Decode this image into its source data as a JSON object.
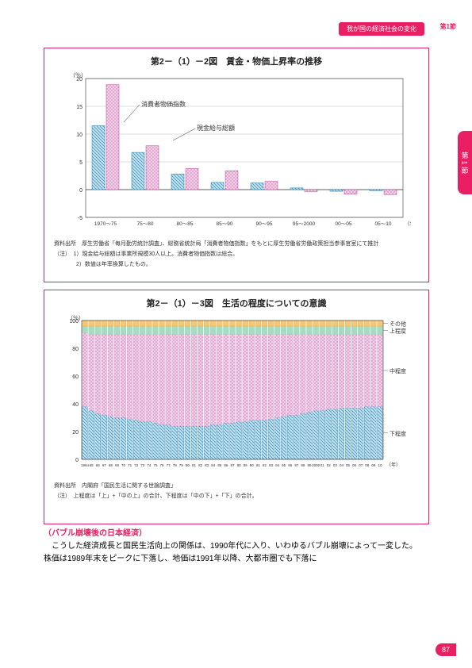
{
  "header": {
    "tag": "我が国の経済社会の変化",
    "sect": "第1節"
  },
  "sideTab": "第 1 節",
  "chart1": {
    "title": "第2－（1）－2図　賃金・物価上昇率の推移",
    "yUnit": "（％）",
    "xUnitSuffix": "（年）",
    "ylim": [
      -5,
      20
    ],
    "yticks": [
      -5,
      0,
      5,
      10,
      15,
      20
    ],
    "categories": [
      "1970～75",
      "75～80",
      "80～85",
      "85～90",
      "90～95",
      "95～2000",
      "00～05",
      "05～10"
    ],
    "series": [
      {
        "name": "消費者物価指数",
        "color": "#c04898",
        "values": [
          11.5,
          6.7,
          2.8,
          1.3,
          1.2,
          0.3,
          -0.3,
          -0.2
        ]
      },
      {
        "name": "現金給与総額",
        "color": "#1a7aa8",
        "values": [
          18.9,
          7.9,
          3.8,
          3.4,
          1.5,
          -0.4,
          -0.8,
          -0.9
        ]
      }
    ],
    "annot1": {
      "text": "消費者物価指数",
      "target": 0
    },
    "annot2": {
      "text": "現金給与総額",
      "target": 1
    },
    "source": "資料出所　厚生労働省「毎月勤労統計調査」、総務省統計局「消費者物価指数」をもとに厚生労働省労働政策担当参事官室にて推計",
    "notes": [
      "（注）　1）現金給与総額は事業所規模30人以上。消費者物価指数は総合。",
      "　　　　2）数値は年率換算したもの。"
    ]
  },
  "chart2": {
    "title": "第2－（1）－3図　生活の程度についての意識",
    "yUnit": "（％）",
    "xUnitSuffix": "（年）",
    "ylim": [
      0,
      100
    ],
    "yticks": [
      0,
      20,
      40,
      60,
      80,
      100
    ],
    "years": [
      1964,
      65,
      66,
      67,
      68,
      69,
      70,
      71,
      72,
      73,
      74,
      75,
      76,
      77,
      78,
      79,
      80,
      81,
      82,
      83,
      84,
      85,
      86,
      87,
      88,
      89,
      90,
      91,
      92,
      93,
      94,
      95,
      96,
      97,
      98,
      99,
      2000,
      "01",
      "02",
      "03",
      "04",
      "05",
      "06",
      "07",
      "08",
      "09",
      10
    ],
    "rightLabels": [
      "その他",
      "上程度",
      "中程度",
      "下程度"
    ],
    "legendColors": {
      "下程度": "#1a7aa8",
      "中程度": "#c9a0d4",
      "上程度": "#7fc9a9",
      "その他": "#f0a030"
    },
    "stacks": [
      [
        38,
        53,
        5,
        4
      ],
      [
        35,
        55,
        6,
        4
      ],
      [
        33,
        57,
        6,
        4
      ],
      [
        32,
        58,
        6,
        4
      ],
      [
        31,
        59,
        6,
        4
      ],
      [
        30,
        60,
        6,
        4
      ],
      [
        30,
        60,
        6,
        4
      ],
      [
        29,
        61,
        6,
        4
      ],
      [
        28,
        62,
        6,
        4
      ],
      [
        27,
        63,
        6,
        4
      ],
      [
        27,
        63,
        6,
        4
      ],
      [
        26,
        64,
        6,
        4
      ],
      [
        25,
        65,
        6,
        4
      ],
      [
        25,
        65,
        6,
        4
      ],
      [
        24,
        66,
        6,
        4
      ],
      [
        24,
        66,
        6,
        4
      ],
      [
        24,
        66,
        6,
        4
      ],
      [
        24,
        66,
        6,
        4
      ],
      [
        24,
        66,
        6,
        4
      ],
      [
        24,
        66,
        6,
        4
      ],
      [
        25,
        65,
        6,
        4
      ],
      [
        25,
        65,
        6,
        4
      ],
      [
        26,
        64,
        6,
        4
      ],
      [
        26,
        64,
        6,
        4
      ],
      [
        27,
        63,
        6,
        4
      ],
      [
        27,
        63,
        6,
        4
      ],
      [
        28,
        62,
        6,
        4
      ],
      [
        28,
        62,
        6,
        4
      ],
      [
        28,
        62,
        6,
        4
      ],
      [
        29,
        61,
        6,
        4
      ],
      [
        30,
        60,
        6,
        4
      ],
      [
        31,
        59,
        6,
        4
      ],
      [
        32,
        58,
        6,
        4
      ],
      [
        32,
        58,
        6,
        4
      ],
      [
        33,
        57,
        6,
        4
      ],
      [
        34,
        56,
        6,
        4
      ],
      [
        35,
        55,
        6,
        4
      ],
      [
        35,
        55,
        6,
        4
      ],
      [
        36,
        54,
        6,
        4
      ],
      [
        36,
        54,
        6,
        4
      ],
      [
        37,
        53,
        6,
        4
      ],
      [
        37,
        53,
        6,
        4
      ],
      [
        37,
        53,
        6,
        4
      ],
      [
        37,
        53,
        6,
        4
      ],
      [
        38,
        52,
        6,
        4
      ],
      [
        38,
        52,
        6,
        4
      ],
      [
        38,
        52,
        6,
        4
      ]
    ],
    "source": "資料出所　内閣府「国民生活に関する世論調査」",
    "note": "（注）　上程度は「上」+「中の上」の合計、下程度は「中の下」+「下」の合計。"
  },
  "body": {
    "heading": "（バブル崩壊後の日本経済）",
    "p1": "　こうした経済成長と国民生活向上の関係は、1990年代に入り、いわゆるバブル崩壊によって一変した。株価は1989年末をピークに下落し、地価は1991年以降、大都市圏でも下落に"
  },
  "pageNum": "87"
}
